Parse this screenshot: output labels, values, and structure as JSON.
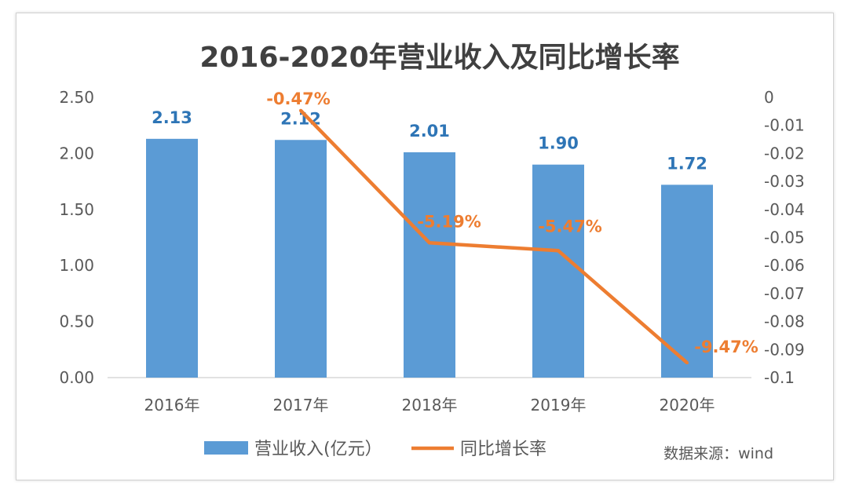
{
  "chart_data": {
    "type": "bar+line",
    "title": "2016-2020年营业收入及同比增长率",
    "categories": [
      "2016年",
      "2017年",
      "2018年",
      "2019年",
      "2020年"
    ],
    "series": [
      {
        "name": "营业收入(亿元）",
        "type": "bar",
        "axis": "left",
        "values": [
          2.13,
          2.12,
          2.01,
          1.9,
          1.72
        ],
        "labels": [
          "2.13",
          "2.12",
          "2.01",
          "1.90",
          "1.72"
        ],
        "color": "#5b9bd5",
        "label_color": "#2e75b6"
      },
      {
        "name": "同比增长率",
        "type": "line",
        "axis": "right",
        "values": [
          null,
          -0.0047,
          -0.0519,
          -0.0547,
          -0.0947
        ],
        "labels": [
          "",
          "-0.47%",
          "-5.19%",
          "-5.47%",
          "-9.47%"
        ],
        "color": "#ed7d31"
      }
    ],
    "y_left": {
      "range": [
        0,
        2.5
      ],
      "ticks": [
        "0.00",
        "0.50",
        "1.00",
        "1.50",
        "2.00",
        "2.50"
      ]
    },
    "y_right": {
      "range": [
        -0.1,
        0
      ],
      "ticks": [
        "0",
        "-0.01",
        "-0.02",
        "-0.03",
        "-0.04",
        "-0.05",
        "-0.06",
        "-0.07",
        "-0.08",
        "-0.09",
        "-0.1"
      ]
    },
    "grid": false,
    "legend": "bottom",
    "source": "数据来源：wind"
  }
}
